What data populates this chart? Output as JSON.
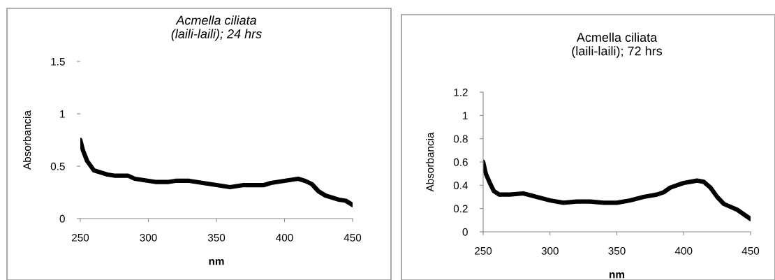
{
  "chart_data": [
    {
      "type": "line",
      "title": "Acmella ciliata",
      "subtitle": "(laili-laili); 24 hrs",
      "xlabel": "nm",
      "ylabel": "Absorbancia",
      "xlim": [
        250,
        450
      ],
      "xticks": [
        250,
        300,
        350,
        400,
        450
      ],
      "ylim": [
        0,
        1.5
      ],
      "yticks": [
        0,
        0.5,
        1,
        1.5
      ],
      "grid": false,
      "legend": false,
      "series": [
        {
          "color": "#000000",
          "x": [
            250,
            252,
            255,
            260,
            265,
            270,
            275,
            285,
            290,
            300,
            305,
            315,
            320,
            330,
            340,
            350,
            360,
            365,
            370,
            385,
            390,
            400,
            410,
            415,
            420,
            425,
            430,
            440,
            445,
            450
          ],
          "values": [
            0.75,
            0.65,
            0.55,
            0.46,
            0.44,
            0.42,
            0.41,
            0.41,
            0.38,
            0.36,
            0.35,
            0.35,
            0.36,
            0.36,
            0.34,
            0.32,
            0.3,
            0.31,
            0.32,
            0.32,
            0.34,
            0.36,
            0.38,
            0.36,
            0.33,
            0.26,
            0.22,
            0.18,
            0.17,
            0.13
          ]
        }
      ]
    },
    {
      "type": "line",
      "title": "Acmella ciliata",
      "subtitle": "(laili-laili); 72 hrs",
      "xlabel": "nm",
      "ylabel": "Absorbancia",
      "xlim": [
        250,
        450
      ],
      "xticks": [
        250,
        300,
        350,
        400,
        450
      ],
      "ylim": [
        0,
        1.2
      ],
      "yticks": [
        0,
        0.2,
        0.4,
        0.6,
        0.8,
        1,
        1.2
      ],
      "grid": false,
      "legend": false,
      "series": [
        {
          "color": "#000000",
          "x": [
            250,
            252,
            255,
            258,
            262,
            270,
            280,
            290,
            300,
            310,
            320,
            330,
            340,
            350,
            360,
            370,
            380,
            385,
            390,
            400,
            405,
            410,
            415,
            420,
            425,
            430,
            440,
            450
          ],
          "values": [
            0.6,
            0.5,
            0.42,
            0.35,
            0.32,
            0.32,
            0.33,
            0.3,
            0.27,
            0.25,
            0.26,
            0.26,
            0.25,
            0.25,
            0.27,
            0.3,
            0.32,
            0.34,
            0.38,
            0.42,
            0.43,
            0.44,
            0.43,
            0.38,
            0.3,
            0.24,
            0.19,
            0.11
          ]
        }
      ]
    }
  ]
}
